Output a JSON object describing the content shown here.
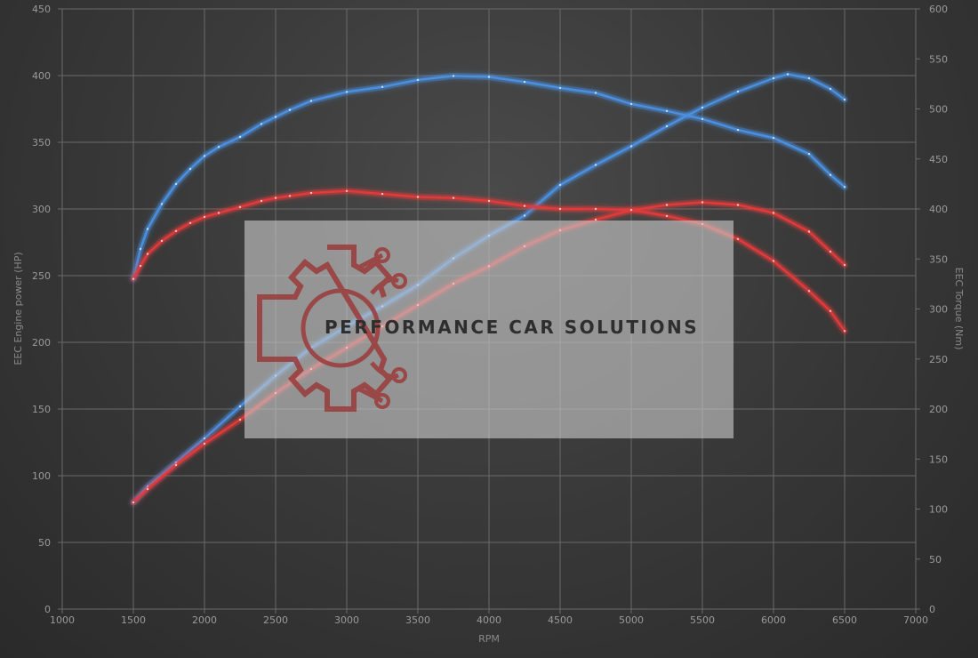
{
  "chart_data": {
    "type": "line",
    "title": "",
    "xlabel": "RPM",
    "ylabel_left": "EEC Engine power (HP)",
    "ylabel_right": "EEC Torque (Nm)",
    "xlim": [
      1000,
      7000
    ],
    "ylim_left": [
      0,
      450
    ],
    "ylim_right": [
      0,
      600
    ],
    "x_ticks": [
      "1000",
      "1500",
      "2000",
      "2500",
      "3000",
      "3500",
      "4000",
      "4500",
      "5000",
      "5500",
      "6000",
      "6500",
      "7000"
    ],
    "y_left_ticks": [
      "0",
      "50",
      "100",
      "150",
      "200",
      "250",
      "300",
      "350",
      "400",
      "450"
    ],
    "y_right_ticks": [
      "0",
      "50",
      "100",
      "150",
      "200",
      "250",
      "300",
      "350",
      "400",
      "450",
      "500",
      "550",
      "600"
    ],
    "grid": true,
    "series": [
      {
        "color": "#4a8fe0",
        "axis": "left",
        "x": [
          1500,
          1600,
          1800,
          2000,
          2250,
          2500,
          2750,
          3000,
          3250,
          3500,
          3750,
          4000,
          4250,
          4500,
          4750,
          5000,
          5250,
          5500,
          5750,
          6000,
          6100,
          6250,
          6400,
          6500
        ],
        "values": [
          80,
          92,
          110,
          128,
          152,
          175,
          196,
          212,
          227,
          243,
          263,
          280,
          295,
          318,
          333,
          347,
          362,
          376,
          388,
          398,
          401,
          398,
          390,
          382
        ]
      },
      {
        "color": "#4a8fe0",
        "axis": "right",
        "x": [
          1500,
          1550,
          1600,
          1700,
          1800,
          1900,
          2000,
          2100,
          2250,
          2400,
          2500,
          2600,
          2750,
          3000,
          3250,
          3500,
          3750,
          4000,
          4250,
          4500,
          4750,
          5000,
          5250,
          5500,
          5750,
          6000,
          6250,
          6400,
          6500
        ],
        "values": [
          330,
          360,
          380,
          405,
          425,
          440,
          453,
          462,
          472,
          485,
          492,
          499,
          508,
          517,
          522,
          529,
          533,
          532,
          527,
          521,
          516,
          505,
          498,
          490,
          479,
          471,
          455,
          434,
          422
        ]
      },
      {
        "color": "#e23a3a",
        "axis": "left",
        "x": [
          1500,
          1600,
          1800,
          2000,
          2250,
          2500,
          2750,
          3000,
          3250,
          3500,
          3750,
          4000,
          4250,
          4500,
          4750,
          5000,
          5250,
          5500,
          5750,
          6000,
          6250,
          6400,
          6500
        ],
        "values": [
          80,
          90,
          108,
          124,
          142,
          162,
          180,
          196,
          212,
          228,
          244,
          257,
          272,
          284,
          292,
          299,
          303,
          305,
          303,
          297,
          283,
          268,
          258
        ]
      },
      {
        "color": "#e23a3a",
        "axis": "right",
        "x": [
          1500,
          1550,
          1600,
          1700,
          1800,
          1900,
          2000,
          2100,
          2250,
          2400,
          2500,
          2600,
          2750,
          3000,
          3250,
          3500,
          3750,
          4000,
          4250,
          4500,
          4750,
          5000,
          5250,
          5500,
          5750,
          6000,
          6250,
          6400,
          6500
        ],
        "values": [
          330,
          343,
          355,
          368,
          378,
          386,
          392,
          396,
          402,
          408,
          411,
          413,
          416,
          418,
          415,
          412,
          411,
          408,
          403,
          400,
          400,
          399,
          393,
          385,
          370,
          348,
          318,
          298,
          278
        ]
      }
    ]
  },
  "watermark": {
    "text": "PERFORMANCE CAR SOLUTIONS",
    "logo_icon": "gear-circuit-logo-icon"
  }
}
